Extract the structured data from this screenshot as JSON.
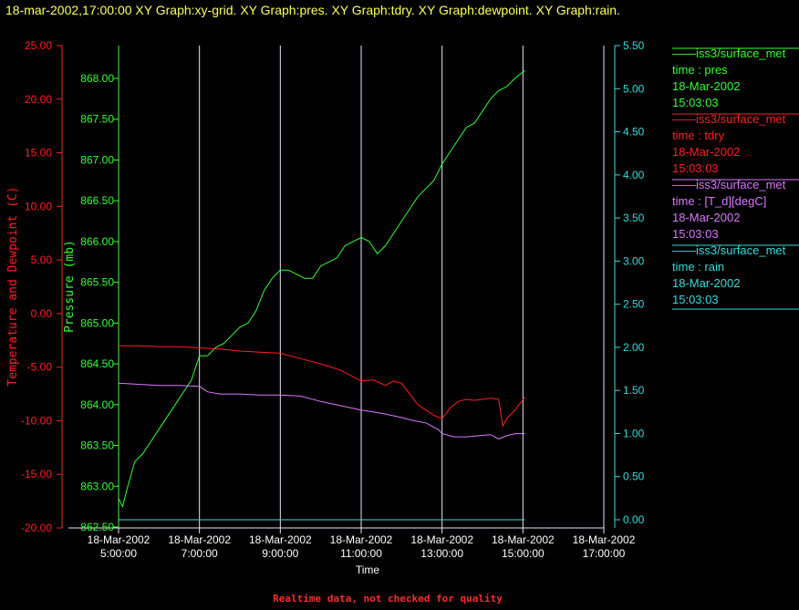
{
  "page": {
    "title": "18-mar-2002,17:00:00  XY Graph:xy-grid.  XY Graph:pres.  XY Graph:tdry.  XY Graph:dewpoint.  XY Graph:rain.",
    "footer": "Realtime data, not checked for quality"
  },
  "colors": {
    "background": "#000000",
    "title": "#ffff55",
    "temperature": "#ff2020",
    "pressure": "#33ff33",
    "rain": "#33dddd",
    "dewpoint": "#dd77ff",
    "grid": "#e6e6ff",
    "text": "#ffffff"
  },
  "chart_data": {
    "type": "line",
    "xlabel": "Time",
    "x_ticks": [
      {
        "date": "18-Mar-2002",
        "time": "5:00:00",
        "hour": 5
      },
      {
        "date": "18-Mar-2002",
        "time": "7:00:00",
        "hour": 7
      },
      {
        "date": "18-Mar-2002",
        "time": "9:00:00",
        "hour": 9
      },
      {
        "date": "18-Mar-2002",
        "time": "11:00:00",
        "hour": 11
      },
      {
        "date": "18-Mar-2002",
        "time": "13:00:00",
        "hour": 13
      },
      {
        "date": "18-Mar-2002",
        "time": "15:00:00",
        "hour": 15
      },
      {
        "date": "18-Mar-2002",
        "time": "17:00:00",
        "hour": 17
      }
    ],
    "x_range": [
      5,
      17
    ],
    "grid": true,
    "legend_position": "right",
    "axes": {
      "left_temp": {
        "label": "Temperature and Dewpoint (C)",
        "range": [
          -20,
          25
        ],
        "ticks": [
          "25.00",
          "20.00",
          "15.00",
          "10.00",
          "5.00",
          "0.00",
          "-5.00",
          "-10.00",
          "-15.00",
          "-20.00"
        ],
        "tick_values": [
          25,
          20,
          15,
          10,
          5,
          0,
          -5,
          -10,
          -15,
          -20
        ]
      },
      "left_pres": {
        "label": "Pressure (mb)",
        "range": [
          862.5,
          868.25
        ],
        "ticks": [
          "868.00",
          "867.50",
          "867.00",
          "866.50",
          "866.00",
          "865.50",
          "865.00",
          "864.50",
          "864.00",
          "863.50",
          "863.00",
          "862.50"
        ],
        "tick_values": [
          868.0,
          867.5,
          867.0,
          866.5,
          866.0,
          865.5,
          865.0,
          864.5,
          864.0,
          863.5,
          863.0,
          862.5
        ]
      },
      "right_rain": {
        "label": "",
        "range": [
          -0.1,
          5.5
        ],
        "ticks": [
          "5.50",
          "5.00",
          "4.50",
          "4.00",
          "3.50",
          "3.00",
          "2.50",
          "2.00",
          "1.50",
          "1.00",
          "0.50",
          "0.00"
        ],
        "tick_values": [
          5.5,
          5.0,
          4.5,
          4.0,
          3.5,
          3.0,
          2.5,
          2.0,
          1.5,
          1.0,
          0.5,
          0.0
        ]
      }
    },
    "series": [
      {
        "key": "pres",
        "axis": "left_pres",
        "name": "iss3/surface_met",
        "field": "time : pres",
        "date": "18-Mar-2002",
        "time": "15:03:03",
        "x": [
          5.0,
          5.1,
          5.2,
          5.4,
          5.6,
          5.8,
          6.0,
          6.2,
          6.4,
          6.6,
          6.8,
          7.0,
          7.2,
          7.4,
          7.6,
          7.8,
          8.0,
          8.2,
          8.4,
          8.6,
          8.8,
          9.0,
          9.2,
          9.4,
          9.6,
          9.8,
          10.0,
          10.2,
          10.4,
          10.6,
          10.8,
          11.0,
          11.2,
          11.4,
          11.6,
          11.8,
          12.0,
          12.2,
          12.4,
          12.6,
          12.8,
          13.0,
          13.2,
          13.4,
          13.6,
          13.8,
          14.0,
          14.2,
          14.4,
          14.6,
          14.8,
          15.05
        ],
        "y": [
          862.85,
          862.75,
          862.95,
          863.3,
          863.4,
          863.55,
          863.7,
          863.85,
          864.0,
          864.15,
          864.3,
          864.6,
          864.6,
          864.7,
          864.75,
          864.85,
          864.95,
          865.0,
          865.15,
          865.4,
          865.55,
          865.65,
          865.65,
          865.6,
          865.55,
          865.55,
          865.7,
          865.75,
          865.8,
          865.95,
          866.0,
          866.05,
          866.0,
          865.85,
          865.95,
          866.1,
          866.25,
          866.4,
          866.55,
          866.65,
          866.75,
          866.95,
          867.1,
          867.25,
          867.4,
          867.45,
          867.6,
          867.75,
          867.85,
          867.9,
          868.0,
          868.1
        ]
      },
      {
        "key": "tdry",
        "axis": "left_temp",
        "name": "iss3/surface_met",
        "field": "time : tdry",
        "date": "18-Mar-2002",
        "time": "15:03:03",
        "x": [
          5.0,
          5.5,
          6.0,
          6.5,
          7.0,
          7.5,
          8.0,
          8.5,
          9.0,
          9.5,
          10.0,
          10.5,
          11.0,
          11.3,
          11.6,
          11.8,
          12.0,
          12.2,
          12.4,
          12.6,
          12.8,
          13.0,
          13.2,
          13.4,
          13.6,
          13.8,
          14.0,
          14.2,
          14.4,
          14.5,
          14.6,
          14.8,
          15.05
        ],
        "y": [
          -3.0,
          -3.0,
          -3.1,
          -3.1,
          -3.2,
          -3.3,
          -3.5,
          -3.6,
          -3.7,
          -4.2,
          -4.7,
          -5.3,
          -6.3,
          -6.2,
          -6.7,
          -6.3,
          -6.5,
          -7.5,
          -8.5,
          -9.0,
          -9.5,
          -9.8,
          -8.8,
          -8.2,
          -8.0,
          -8.1,
          -8.0,
          -7.9,
          -8.0,
          -10.5,
          -9.8,
          -9.0,
          -7.8
        ]
      },
      {
        "key": "dewpoint",
        "axis": "left_temp",
        "name": "iss3/surface_met",
        "field": "time : [T_d][degC]",
        "date": "18-Mar-2002",
        "time": "15:03:03",
        "x": [
          5.0,
          5.5,
          6.0,
          6.5,
          7.0,
          7.2,
          7.5,
          8.0,
          8.5,
          9.0,
          9.5,
          10.0,
          10.5,
          11.0,
          11.5,
          12.0,
          12.3,
          12.6,
          12.9,
          13.0,
          13.3,
          13.6,
          13.9,
          14.2,
          14.4,
          14.6,
          14.8,
          15.05
        ],
        "y": [
          -6.5,
          -6.6,
          -6.7,
          -6.7,
          -6.8,
          -7.3,
          -7.5,
          -7.5,
          -7.6,
          -7.6,
          -7.7,
          -8.2,
          -8.6,
          -9.0,
          -9.3,
          -9.7,
          -10.0,
          -10.2,
          -10.8,
          -11.2,
          -11.5,
          -11.5,
          -11.4,
          -11.3,
          -11.7,
          -11.4,
          -11.2,
          -11.2
        ]
      },
      {
        "key": "rain",
        "axis": "right_rain",
        "name": "iss3/surface_met",
        "field": "time : rain",
        "date": "18-Mar-2002",
        "time": "15:03:03",
        "x": [
          5.0,
          15.05
        ],
        "y": [
          0.0,
          0.0
        ]
      }
    ]
  }
}
